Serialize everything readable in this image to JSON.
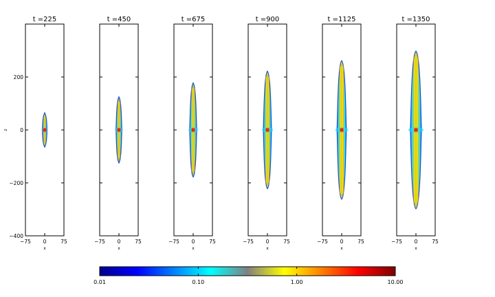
{
  "chart_data": {
    "type": "heatmap",
    "panels": [
      {
        "title": "t =225",
        "t": 225,
        "z_extent": [
          -65,
          65
        ],
        "max_half_width": 8
      },
      {
        "title": "t =450",
        "t": 450,
        "z_extent": [
          -125,
          125
        ],
        "max_half_width": 10
      },
      {
        "title": "t =675",
        "t": 675,
        "z_extent": [
          -178,
          178
        ],
        "max_half_width": 12
      },
      {
        "title": "t =900",
        "t": 900,
        "z_extent": [
          -222,
          222
        ],
        "max_half_width": 14
      },
      {
        "title": "t =1125",
        "t": 1125,
        "z_extent": [
          -262,
          262
        ],
        "max_half_width": 16
      },
      {
        "title": "t =1350",
        "t": 1350,
        "z_extent": [
          -298,
          298
        ],
        "max_half_width": 19
      }
    ],
    "xlabel": "x",
    "ylabel": "z",
    "xlim": [
      -75,
      75
    ],
    "ylim": [
      -400,
      400
    ],
    "x_ticks": [
      -75,
      0,
      75
    ],
    "x_tick_labels": [
      "−75",
      "0",
      "75"
    ],
    "y_ticks": [
      -400,
      -200,
      0,
      200
    ],
    "y_tick_labels": [
      "−400",
      "−200",
      "0",
      "200"
    ],
    "colorbar": {
      "scale": "log",
      "range": [
        0.01,
        10.0
      ],
      "ticks": [
        0.01,
        0.1,
        1.0,
        10.0
      ],
      "tick_labels": [
        "0.01",
        "0.10",
        "1.00",
        "10.00"
      ],
      "colormap": [
        "#00008f",
        "#0000ff",
        "#0080ff",
        "#00ffff",
        "#808080",
        "#ffff00",
        "#ff8000",
        "#ff0000",
        "#800000"
      ]
    },
    "grid": false
  }
}
